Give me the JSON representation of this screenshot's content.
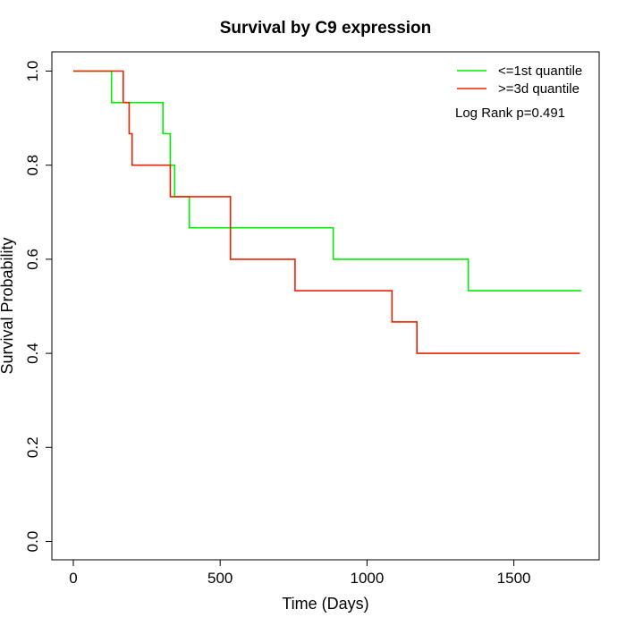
{
  "chart_data": {
    "type": "line",
    "subtype": "kaplan-meier step curve",
    "title": "Survival by C9 expression",
    "xlabel": "Time (Days)",
    "ylabel": "Survival Probability",
    "xlim": [
      0,
      1780
    ],
    "ylim": [
      0,
      1.0
    ],
    "xticks": [
      0,
      500,
      1000,
      1500
    ],
    "xtick_labels": [
      "0",
      "500",
      "1000",
      "1500"
    ],
    "yticks": [
      0.0,
      0.2,
      0.4,
      0.6,
      0.8,
      1.0
    ],
    "ytick_labels": [
      "0.0",
      "0.2",
      "0.4",
      "0.6",
      "0.8",
      "1.0"
    ],
    "grid": false,
    "legend_position": "top-right",
    "annotation": "Log Rank p=0.491",
    "series": [
      {
        "name": "<=1st quantile",
        "color": "#00ee00",
        "x": [
          0,
          130,
          305,
          330,
          345,
          395,
          885,
          1345,
          1730
        ],
        "y": [
          1.0,
          0.933,
          0.867,
          0.8,
          0.733,
          0.667,
          0.6,
          0.533,
          0.533
        ]
      },
      {
        "name": ">=3d quantile",
        "color": "#ee2200",
        "x": [
          0,
          170,
          190,
          200,
          330,
          535,
          755,
          1085,
          1170,
          1725
        ],
        "y": [
          1.0,
          0.933,
          0.867,
          0.8,
          0.733,
          0.6,
          0.533,
          0.467,
          0.4,
          0.4
        ]
      }
    ]
  }
}
